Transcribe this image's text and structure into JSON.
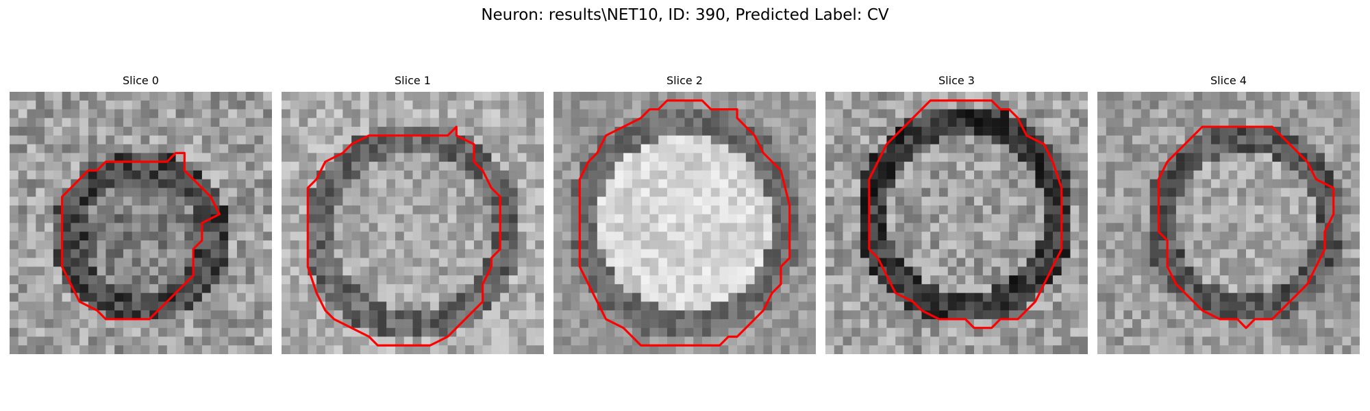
{
  "figure": {
    "title": "Neuron: results\\NET10, ID: 390, Predicted Label: CV"
  },
  "image_panels": [
    {
      "label": "Slice 0",
      "contour_color": "#ff0000"
    },
    {
      "label": "Slice 1",
      "contour_color": "#ff0000"
    },
    {
      "label": "Slice 2",
      "contour_color": "#ff0000"
    },
    {
      "label": "Slice 3",
      "contour_color": "#ff0000"
    },
    {
      "label": "Slice 4",
      "contour_color": "#ff0000"
    }
  ]
}
